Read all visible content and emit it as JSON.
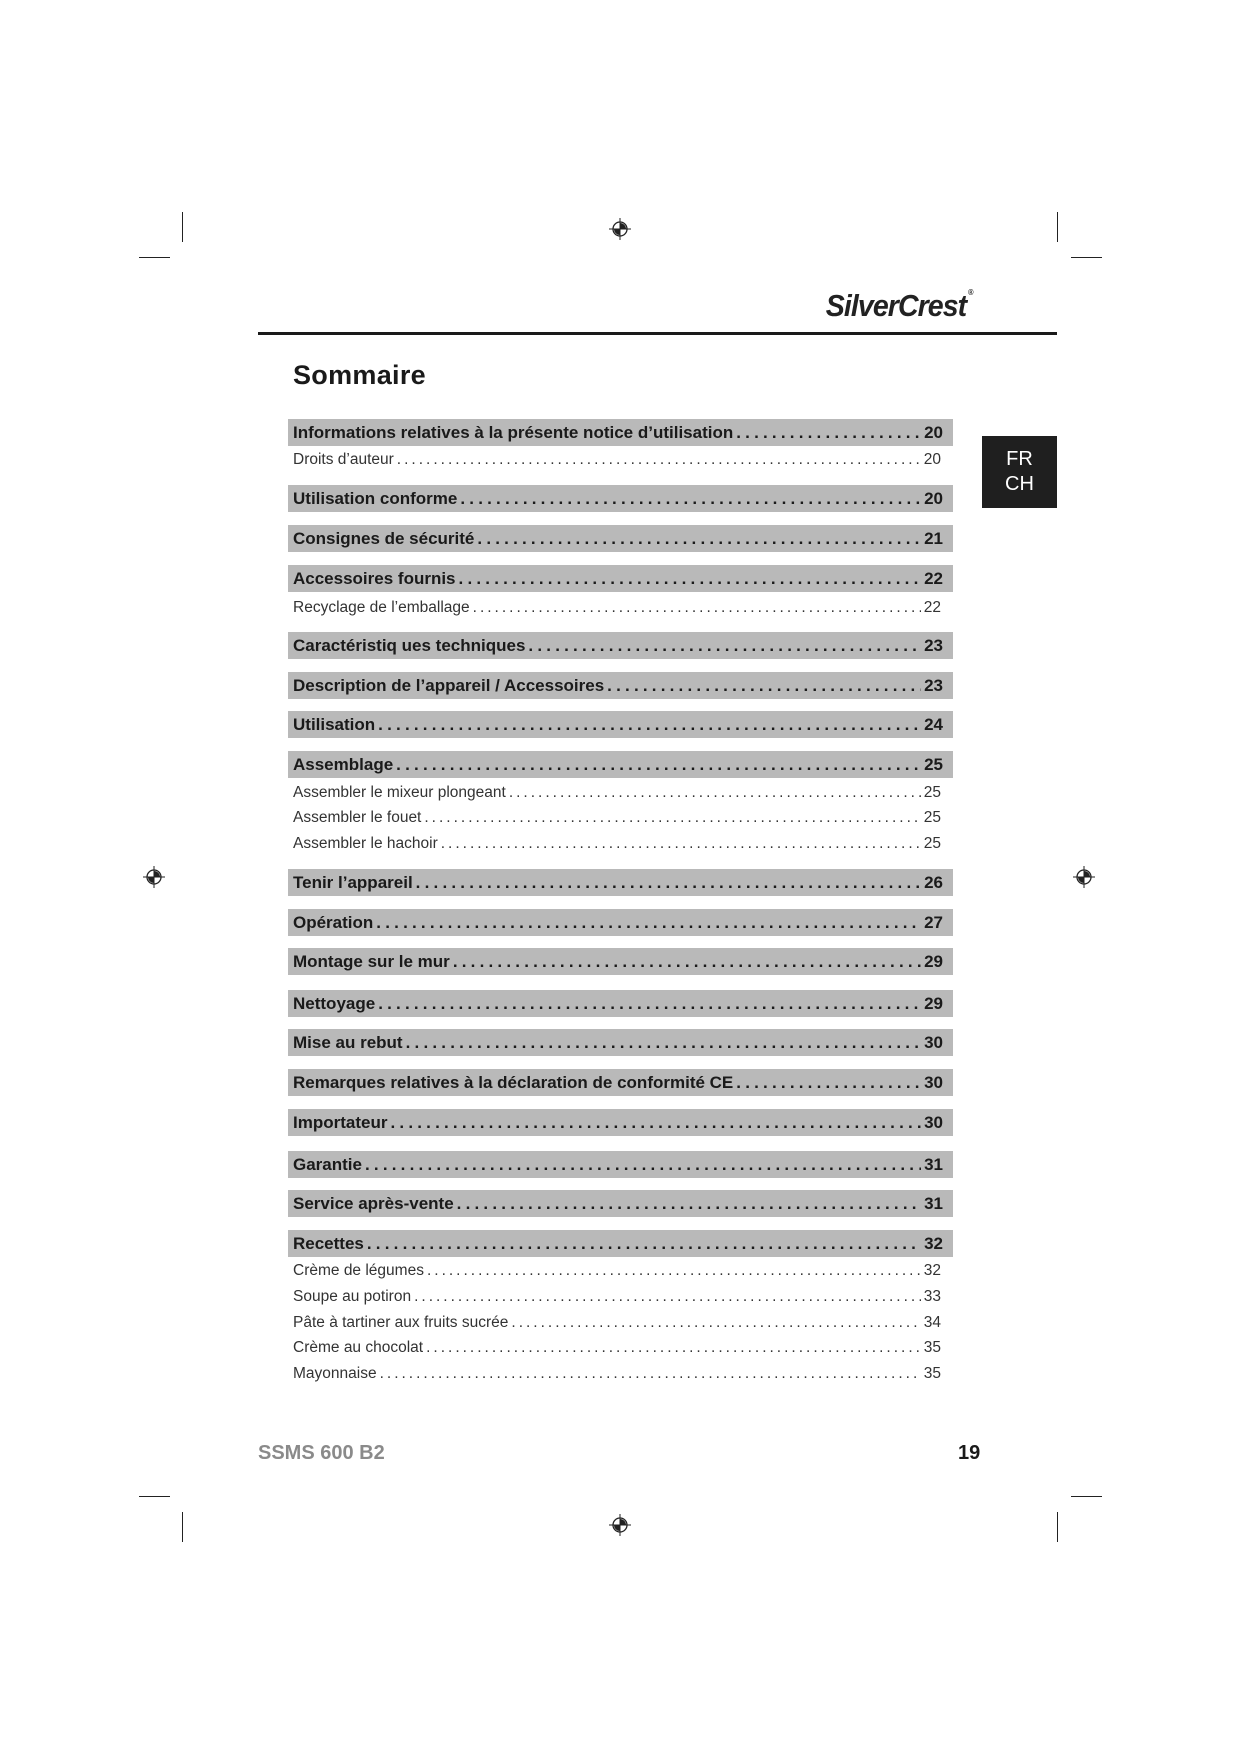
{
  "header": {
    "brand_logo": "SilverCrest",
    "title": "Sommaire"
  },
  "language_tab": {
    "line1": "FR",
    "line2": "CH"
  },
  "toc": [
    {
      "label": "Informations relatives à la présente notice d’utilisation",
      "page": "20",
      "level": 1
    },
    {
      "label": "Droits d’auteur",
      "page": "20",
      "level": 2
    },
    {
      "label": "Utilisation conforme",
      "page": "20",
      "level": 1
    },
    {
      "label": "Consignes de sécurité",
      "page": "21",
      "level": 1
    },
    {
      "label": "Accessoires fournis",
      "page": "22",
      "level": 1
    },
    {
      "label": "Recyclage de l’emballage",
      "page": "22",
      "level": 2
    },
    {
      "label": "Caractéristiq ues techniques",
      "page": "23",
      "level": 1
    },
    {
      "label": "Description de l’appareil / Accessoires",
      "page": "23",
      "level": 1
    },
    {
      "label": "Utilisation",
      "page": "24",
      "level": 1
    },
    {
      "label": "Assemblage",
      "page": "25",
      "level": 1
    },
    {
      "label": "Assembler le mixeur plongeant",
      "page": "25",
      "level": 2
    },
    {
      "label": "Assembler le fouet",
      "page": "25",
      "level": 2
    },
    {
      "label": "Assembler le hachoir",
      "page": "25",
      "level": 2
    },
    {
      "label": "Tenir l’appareil",
      "page": "26",
      "level": 1
    },
    {
      "label": "Opération",
      "page": "27",
      "level": 1
    },
    {
      "label": "Montage sur le mur",
      "page": "29",
      "level": 1
    },
    {
      "label": "Nettoyage",
      "page": "29",
      "level": 1
    },
    {
      "label": "Mise au rebut",
      "page": "30",
      "level": 1
    },
    {
      "label": "Remarques relatives à la déclaration de conformité CE",
      "page": "30",
      "level": 1
    },
    {
      "label": "Importateur",
      "page": "30",
      "level": 1
    },
    {
      "label": "Garantie",
      "page": "31",
      "level": 1
    },
    {
      "label": "Service après-vente",
      "page": "31",
      "level": 1
    },
    {
      "label": "Recettes",
      "page": "32",
      "level": 1
    },
    {
      "label": "Crème de légumes",
      "page": "32",
      "level": 2
    },
    {
      "label": "Soupe au potiron",
      "page": "33",
      "level": 2
    },
    {
      "label": "Pâte à tartiner aux fruits sucrée",
      "page": "34",
      "level": 2
    },
    {
      "label": "Crème au chocolat",
      "page": "35",
      "level": 2
    },
    {
      "label": "Mayonnaise",
      "page": "35",
      "level": 2
    }
  ],
  "footer": {
    "model": "SSMS 600 B2",
    "page_number": "19"
  },
  "colors": {
    "section_bar": "#b9b9b9",
    "language_tab": "#1f1f1f",
    "model_text": "#8a8a8a"
  }
}
